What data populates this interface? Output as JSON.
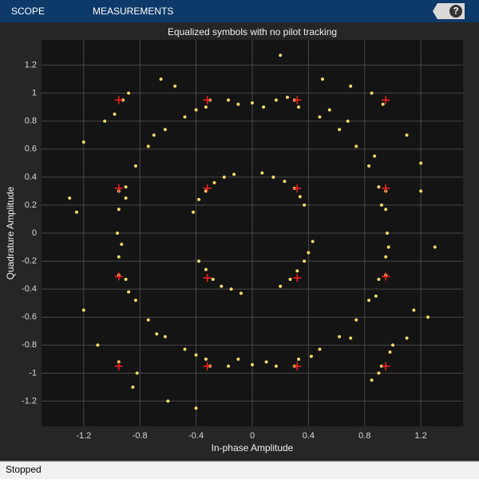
{
  "toolbar": {
    "tabs": [
      "SCOPE",
      "MEASUREMENTS"
    ],
    "help": "?"
  },
  "status": "Stopped",
  "chart_data": {
    "type": "scatter",
    "title": "Equalized symbols with no pilot tracking",
    "x_label": "In-phase Amplitude",
    "y_label": "Quadrature Amplitude",
    "xlim": [
      -1.5,
      1.5
    ],
    "ylim": [
      -1.38,
      1.38
    ],
    "xticks": [
      -1.2,
      -0.8,
      -0.4,
      0,
      0.4,
      0.8,
      1.2
    ],
    "yticks": [
      -1.2,
      -1,
      -0.8,
      -0.6,
      -0.4,
      -0.2,
      0,
      0.2,
      0.4,
      0.6,
      0.8,
      1,
      1.2
    ],
    "grid": true,
    "series": [
      {
        "color": "#f5d86a",
        "marker": "dot",
        "x": [
          0,
          0.17,
          0.33,
          0.48,
          0.62,
          0.74,
          0.83,
          0.9,
          0.95,
          0.96,
          0.95,
          0.9,
          0.83,
          0.74,
          0.62,
          0.48,
          0.33,
          0.17,
          0,
          -0.17,
          -0.33,
          -0.48,
          -0.62,
          -0.74,
          -0.83,
          -0.9,
          -0.95,
          -0.96,
          -0.95,
          -0.9,
          -0.83,
          -0.74,
          -0.62,
          -0.48,
          -0.33,
          -0.17,
          0.08,
          0.25,
          0.55,
          0.68,
          0.87,
          0.92,
          0.97,
          0.88,
          0.7,
          0.42,
          0.1,
          -0.1,
          -0.4,
          -0.68,
          -0.88,
          -0.93,
          -0.9,
          -0.7,
          -0.4,
          -0.1,
          -0.55,
          -0.65,
          -1.05,
          -1.2,
          -1.3,
          -1.25,
          -1.2,
          -1.1,
          -0.85,
          -0.6,
          -0.4,
          0.2,
          0.5,
          0.7,
          1.1,
          1.2,
          1.2,
          1.3,
          1.15,
          1.1,
          0.85,
          1.0,
          1.25,
          -0.42,
          -0.38,
          -0.33,
          -0.27,
          -0.2,
          -0.13,
          0.07,
          0.15,
          0.23,
          0.3,
          0.34,
          0.37,
          -0.38,
          -0.33,
          -0.28,
          -0.22,
          -0.15,
          -0.08,
          0.2,
          0.27,
          0.32,
          0.37,
          0.4,
          0.43,
          -0.3,
          0.3,
          -0.95,
          0.95,
          -0.95,
          0.95,
          -0.3,
          0.3,
          -0.92,
          0.93,
          -0.95,
          0.92,
          -0.98,
          0.98,
          -0.88,
          0.9,
          -0.82,
          0.85
        ],
        "values": [
          0.93,
          0.95,
          0.9,
          0.83,
          0.74,
          0.62,
          0.48,
          0.33,
          0.17,
          0,
          -0.17,
          -0.33,
          -0.48,
          -0.62,
          -0.74,
          -0.83,
          -0.9,
          -0.95,
          -0.94,
          -0.95,
          -0.9,
          -0.83,
          -0.74,
          -0.62,
          -0.48,
          -0.33,
          -0.17,
          0,
          0.17,
          0.33,
          0.48,
          0.62,
          0.74,
          0.83,
          0.9,
          0.95,
          0.9,
          0.97,
          0.88,
          0.8,
          0.55,
          0.2,
          -0.1,
          -0.45,
          -0.75,
          -0.88,
          -0.92,
          -0.9,
          -0.87,
          -0.72,
          -0.42,
          -0.08,
          0.25,
          0.7,
          0.88,
          0.92,
          1.05,
          1.1,
          0.8,
          0.65,
          0.25,
          0.15,
          -0.55,
          -0.8,
          -1.1,
          -1.2,
          -1.25,
          1.27,
          1.1,
          1.05,
          0.7,
          0.5,
          0.3,
          -0.1,
          -0.55,
          -0.75,
          -1.05,
          -0.8,
          -0.6,
          0.15,
          0.24,
          0.3,
          0.36,
          0.4,
          0.42,
          0.43,
          0.4,
          0.37,
          0.32,
          0.26,
          0.2,
          -0.2,
          -0.26,
          -0.33,
          -0.38,
          -0.4,
          -0.43,
          -0.38,
          -0.33,
          -0.27,
          -0.2,
          -0.14,
          -0.06,
          0.95,
          0.95,
          0.3,
          0.3,
          -0.3,
          -0.3,
          -0.95,
          -0.95,
          0.95,
          0.92,
          -0.92,
          -0.95,
          0.85,
          -0.85,
          1.0,
          -1.0,
          -1.0,
          1.0
        ]
      },
      {
        "color": "#ff2020",
        "marker": "plus",
        "x": [
          -0.95,
          -0.32,
          0.32,
          0.95,
          -0.95,
          0.95,
          -0.95,
          0.95,
          -0.95,
          -0.32,
          0.32,
          0.95,
          -0.32,
          0.32,
          -0.32,
          0.32
        ],
        "values": [
          0.95,
          0.95,
          0.95,
          0.95,
          0.32,
          0.32,
          -0.31,
          -0.31,
          -0.95,
          -0.95,
          -0.95,
          -0.95,
          0.32,
          0.32,
          -0.32,
          -0.32
        ]
      }
    ]
  }
}
